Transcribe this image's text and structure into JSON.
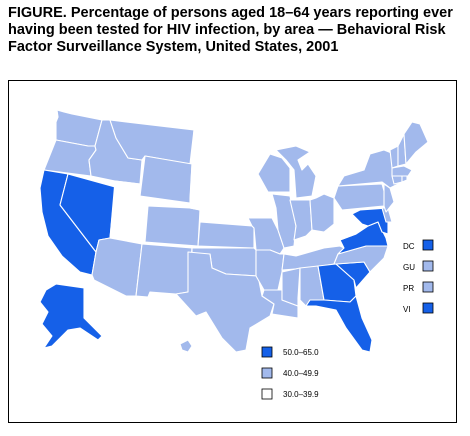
{
  "title": "FIGURE. Percentage of persons aged 18–64 years reporting ever having been tested for HIV infection, by area — Behavioral Risk Factor Surveillance System, United States, 2001",
  "colors": {
    "high": "#1560e8",
    "mid": "#a2b9ec",
    "low": "#ffffff",
    "outline": "#000000"
  },
  "legend": [
    {
      "range": "50.0–65.0",
      "color": "high"
    },
    {
      "range": "40.0–49.9",
      "color": "mid"
    },
    {
      "range": "30.0–39.9",
      "color": "low"
    }
  ],
  "territories": [
    {
      "abbr": "DC",
      "color": "high"
    },
    {
      "abbr": "GU",
      "color": "mid"
    },
    {
      "abbr": "PR",
      "color": "mid"
    },
    {
      "abbr": "VI",
      "color": "high"
    }
  ],
  "states": {
    "WA": "mid",
    "OR": "mid",
    "CA": "high",
    "NV": "high",
    "ID": "mid",
    "MT": "mid",
    "WY": "mid",
    "UT": "low",
    "AZ": "mid",
    "CO": "mid",
    "NM": "mid",
    "ND": "low",
    "SD": "low",
    "NE": "low",
    "KS": "mid",
    "OK": "mid",
    "TX": "mid",
    "MN": "low",
    "IA": "low",
    "MO": "mid",
    "AR": "mid",
    "LA": "mid",
    "WI": "mid",
    "IL": "mid",
    "MI": "mid",
    "IN": "mid",
    "OH": "mid",
    "KY": "low",
    "TN": "mid",
    "MS": "mid",
    "AL": "mid",
    "GA": "high",
    "FL": "high",
    "SC": "high",
    "NC": "mid",
    "VA": "high",
    "WV": "low",
    "MD": "high",
    "DE": "mid",
    "PA": "mid",
    "NJ": "mid",
    "NY": "mid",
    "CT": "mid",
    "RI": "mid",
    "MA": "mid",
    "VT": "mid",
    "NH": "mid",
    "ME": "mid",
    "AK": "high",
    "HI": "mid"
  }
}
